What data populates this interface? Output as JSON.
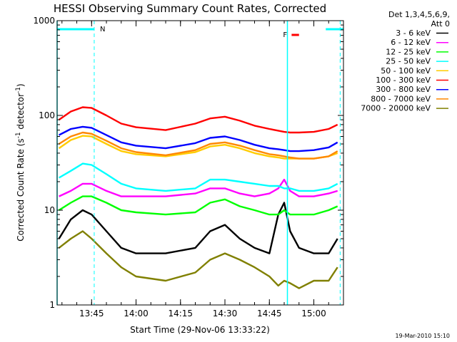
{
  "chart_data": {
    "type": "line",
    "title": "HESSI Observing Summary Count Rates, Corrected",
    "xlabel": "Start Time (29-Nov-06 13:33:22)",
    "ylabel_main": "Corrected Count Rate (s",
    "ylabel_sup1": "-1",
    "ylabel_mid": " detector",
    "ylabel_sup2": "-1",
    "ylabel_end": ")",
    "y_scale": "log",
    "ylim": [
      1,
      1000
    ],
    "xlim": [
      "13:33:22",
      "15:10:00"
    ],
    "x_ticks": [
      "13:45",
      "14:00",
      "14:15",
      "14:30",
      "14:45",
      "15:00"
    ],
    "y_ticks": [
      "1",
      "10",
      "100",
      "1000"
    ],
    "legend_header": [
      "Det 1,3,4,5,6,9,",
      "Att 0"
    ],
    "legend_placement": "right",
    "timestamp": "19-Mar-2010 15:10",
    "annotations": {
      "night_flag": "N",
      "flare_flag": "F",
      "night_intervals": [
        [
          "13:33:22",
          "13:45:53"
        ],
        [
          "15:04:02",
          "15:10:00"
        ]
      ],
      "flare_interval": [
        "14:52:30",
        "14:55:00"
      ],
      "vertical_lines_solid": [
        "13:33:22",
        "14:51:05"
      ],
      "vertical_lines_dashed": [
        "13:45:53",
        "15:08:53"
      ]
    },
    "series": [
      {
        "name": "3 - 6 keV",
        "color": "#000000",
        "x": [
          "13:34",
          "13:38",
          "13:42",
          "13:45",
          "13:50",
          "13:55",
          "14:00",
          "14:10",
          "14:20",
          "14:25",
          "14:30",
          "14:35",
          "14:40",
          "14:45",
          "14:48",
          "14:50",
          "14:52",
          "14:55",
          "15:00",
          "15:05",
          "15:08"
        ],
        "y": [
          5,
          8,
          10,
          9,
          6,
          4,
          3.5,
          3.5,
          4,
          6,
          7,
          5,
          4,
          3.5,
          9,
          12,
          6,
          4,
          3.5,
          3.5,
          5
        ]
      },
      {
        "name": "6 - 12 keV",
        "color": "#ff00ff",
        "x": [
          "13:34",
          "13:38",
          "13:42",
          "13:45",
          "13:50",
          "13:55",
          "14:00",
          "14:10",
          "14:20",
          "14:25",
          "14:30",
          "14:35",
          "14:40",
          "14:45",
          "14:48",
          "14:50",
          "14:52",
          "14:55",
          "15:00",
          "15:05",
          "15:08"
        ],
        "y": [
          14,
          16,
          19,
          19,
          16,
          14,
          14,
          14,
          15,
          17,
          17,
          15,
          14,
          15,
          17,
          21,
          16,
          14,
          14,
          15,
          16
        ]
      },
      {
        "name": "12 - 25 keV",
        "color": "#00ff00",
        "x": [
          "13:34",
          "13:38",
          "13:42",
          "13:45",
          "13:50",
          "13:55",
          "14:00",
          "14:10",
          "14:20",
          "14:25",
          "14:30",
          "14:35",
          "14:40",
          "14:45",
          "14:48",
          "14:50",
          "14:52",
          "14:55",
          "15:00",
          "15:05",
          "15:08"
        ],
        "y": [
          10,
          12,
          14,
          14,
          12,
          10,
          9.5,
          9,
          9.5,
          12,
          13,
          11,
          10,
          9,
          9,
          10,
          9,
          9,
          9,
          10,
          11
        ]
      },
      {
        "name": "25 - 50 keV",
        "color": "#00ffff",
        "x": [
          "13:34",
          "13:38",
          "13:42",
          "13:45",
          "13:50",
          "13:55",
          "14:00",
          "14:10",
          "14:20",
          "14:25",
          "14:30",
          "14:35",
          "14:40",
          "14:45",
          "14:48",
          "14:50",
          "14:52",
          "14:55",
          "15:00",
          "15:05",
          "15:08"
        ],
        "y": [
          22,
          26,
          31,
          30,
          24,
          19,
          17,
          16,
          17,
          21,
          21,
          20,
          19,
          18,
          18,
          17,
          17,
          16,
          16,
          17,
          19
        ]
      },
      {
        "name": "50 - 100 keV",
        "color": "#ffcc00",
        "x": [
          "13:34",
          "13:38",
          "13:42",
          "13:45",
          "13:50",
          "13:55",
          "14:00",
          "14:10",
          "14:20",
          "14:25",
          "14:30",
          "14:35",
          "14:40",
          "14:45",
          "14:48",
          "14:50",
          "14:52",
          "14:55",
          "15:00",
          "15:05",
          "15:08"
        ],
        "y": [
          45,
          55,
          61,
          60,
          50,
          42,
          39,
          37,
          41,
          47,
          49,
          45,
          40,
          37,
          36,
          35,
          35,
          35,
          35,
          37,
          40
        ]
      },
      {
        "name": "100 - 300 keV",
        "color": "#ff0000",
        "x": [
          "13:34",
          "13:38",
          "13:42",
          "13:45",
          "13:50",
          "13:55",
          "14:00",
          "14:10",
          "14:20",
          "14:25",
          "14:30",
          "14:35",
          "14:40",
          "14:45",
          "14:48",
          "14:50",
          "14:52",
          "14:55",
          "15:00",
          "15:05",
          "15:08"
        ],
        "y": [
          90,
          110,
          122,
          120,
          100,
          82,
          75,
          70,
          82,
          93,
          97,
          88,
          78,
          72,
          69,
          67,
          66,
          66,
          67,
          72,
          80
        ]
      },
      {
        "name": "300 - 800 keV",
        "color": "#0000ff",
        "x": [
          "13:34",
          "13:38",
          "13:42",
          "13:45",
          "13:50",
          "13:55",
          "14:00",
          "14:10",
          "14:20",
          "14:25",
          "14:30",
          "14:35",
          "14:40",
          "14:45",
          "14:48",
          "14:50",
          "14:52",
          "14:55",
          "15:00",
          "15:05",
          "15:08"
        ],
        "y": [
          62,
          72,
          76,
          74,
          62,
          52,
          48,
          45,
          51,
          58,
          60,
          55,
          49,
          45,
          44,
          43,
          42,
          42,
          43,
          46,
          52
        ]
      },
      {
        "name": "800 - 7000 keV",
        "color": "#ff8800",
        "x": [
          "13:34",
          "13:38",
          "13:42",
          "13:45",
          "13:50",
          "13:55",
          "14:00",
          "14:10",
          "14:20",
          "14:25",
          "14:30",
          "14:35",
          "14:40",
          "14:45",
          "14:48",
          "14:50",
          "14:52",
          "14:55",
          "15:00",
          "15:05",
          "15:08"
        ],
        "y": [
          50,
          60,
          66,
          64,
          54,
          45,
          41,
          38,
          43,
          50,
          52,
          48,
          43,
          39,
          38,
          37,
          36,
          35,
          35,
          37,
          42
        ]
      },
      {
        "name": "7000 - 20000 keV",
        "color": "#808000",
        "x": [
          "13:34",
          "13:38",
          "13:42",
          "13:45",
          "13:50",
          "13:55",
          "14:00",
          "14:10",
          "14:20",
          "14:25",
          "14:30",
          "14:35",
          "14:40",
          "14:45",
          "14:48",
          "14:50",
          "14:52",
          "14:55",
          "15:00",
          "15:05",
          "15:08"
        ],
        "y": [
          4,
          5,
          6,
          5,
          3.5,
          2.5,
          2,
          1.8,
          2.2,
          3,
          3.5,
          3,
          2.5,
          2,
          1.6,
          1.8,
          1.7,
          1.5,
          1.8,
          1.8,
          2.5
        ]
      }
    ]
  }
}
